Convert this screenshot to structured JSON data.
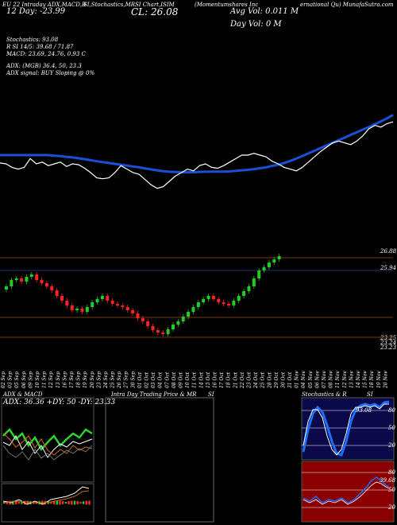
{
  "header": {
    "line1": [
      "EU 22 Intraday ADX,MACD,R",
      "SI,Stochastics,MR",
      "SI Chart,ISIM",
      "(Momentumshares Inc",
      "ernational Qu) MunafaSutra.com"
    ],
    "day_label": "12 Day: -23.99",
    "close_label": "CL: 26.08",
    "avg_vol": "Avg Vol: 0.011 M",
    "day_vol": "Day Vol: 0   M"
  },
  "indicators": {
    "stochastics": "Stochastics: 93.08",
    "rsi": "R                         SI 14/5: 39.68 / 71.87",
    "macd": "MACD: 23.69,  24.76, 0.93 C",
    "adx": "ADX:                                           (MGB) 36.4,  50,  23.3",
    "adx_signal": "ADX  signal:                                BUY Sloping @ 0%"
  },
  "price_levels": [
    "26.88",
    "25.94",
    "23.25",
    "23.24",
    "23.23"
  ],
  "dates": [
    "02 Sep",
    "03 Sep",
    "05 Sep",
    "06 Sep",
    "09 Sep",
    "10 Sep",
    "11 Sep",
    "12 Sep",
    "13 Sep",
    "16 Sep",
    "17 Sep",
    "18 Sep",
    "19 Sep",
    "20 Sep",
    "23 Sep",
    "24 Sep",
    "25 Sep",
    "26 Sep",
    "27 Sep",
    "30 Sep",
    "01 Oct",
    "02 Oct",
    "03 Oct",
    "04 Oct",
    "07 Oct",
    "08 Oct",
    "09 Oct",
    "10 Oct",
    "11 Oct",
    "14 Oct",
    "15 Oct",
    "16 Oct",
    "17 Oct",
    "18 Oct",
    "21 Oct",
    "22 Oct",
    "23 Oct",
    "24 Oct",
    "25 Oct",
    "28 Oct",
    "29 Oct",
    "30 Oct",
    "31 Oct",
    "01 Nov",
    "04 Nov",
    "05 Nov",
    "06 Nov",
    "07 Nov",
    "08 Nov",
    "11 Nov",
    "12 Nov",
    "13 Nov",
    "14 Nov",
    "15 Nov",
    "18 Nov",
    "19 Nov",
    "20 Nov"
  ],
  "panels": {
    "adx_title": "ADX  & MACD",
    "adx_values": "ADX: 36.36  +DY: 50  -DY: 23.33",
    "intraday_title": "Intra Day Trading Price  & MR",
    "intraday_si": "SI",
    "stoch_title": "Stochastics & R",
    "stoch_si": "SI",
    "stoch_levels": [
      "80",
      "50",
      "20"
    ],
    "rsi_levels": [
      "80",
      "50",
      "20"
    ],
    "stoch_value_label": "93.08",
    "rsi_value_label": "39.68"
  },
  "chart_data": {
    "type": "candlestick",
    "price_line": [
      75.5,
      75,
      73,
      72,
      73,
      78,
      75,
      76,
      74,
      75,
      76,
      73.5,
      75,
      74.5,
      72.5,
      70,
      67,
      66.5,
      67,
      70,
      74,
      72,
      70,
      69,
      66,
      63,
      61,
      62,
      65,
      68,
      70,
      72,
      71,
      74,
      75,
      73,
      72.5,
      74,
      76,
      78,
      80,
      80,
      81,
      80,
      79,
      76.5,
      75,
      73,
      72,
      71,
      73,
      76,
      79,
      82,
      84.5,
      87,
      88,
      87,
      86,
      88,
      91,
      95,
      97,
      96,
      98,
      99
    ],
    "sma_line": [
      80,
      80,
      80,
      80,
      80,
      80,
      80,
      80,
      80,
      79.7,
      79.4,
      79,
      78.7,
      78.2,
      77.7,
      77.1,
      76.5,
      76,
      75.5,
      75,
      74.5,
      74,
      73.5,
      73,
      72.4,
      71.8,
      71.3,
      70.8,
      70.5,
      70.3,
      70.2,
      70.2,
      70.2,
      70.4,
      70.5,
      70.6,
      70.6,
      70.6,
      70.7,
      71,
      71.3,
      71.6,
      72,
      72.5,
      73,
      73.8,
      74.5,
      75.5,
      76.7,
      78,
      79.5,
      81,
      82.5,
      84,
      85.5,
      87,
      88.6,
      90,
      91.6,
      93,
      94.6,
      96,
      97.7,
      99.3,
      101,
      103
    ]
  }
}
